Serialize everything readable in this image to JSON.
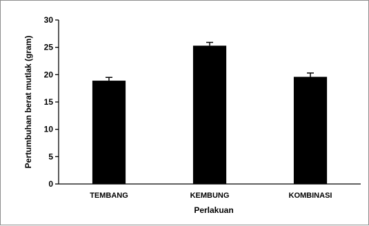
{
  "chart_data": {
    "type": "bar",
    "title": "",
    "xlabel": "Perlakuan",
    "ylabel": "Pertumbuhan berat mutlak (gram)",
    "categories": [
      "TEMBANG",
      "KEMBUNG",
      "KOMBINASI"
    ],
    "values": [
      18.9,
      25.3,
      19.6
    ],
    "errors": [
      0.6,
      0.6,
      0.7
    ],
    "ylim": [
      0,
      30
    ],
    "yticks": [
      "0",
      "5",
      "10",
      "15",
      "20",
      "25",
      "30"
    ],
    "grid": false,
    "legend": "none",
    "bar_color": "#000000"
  }
}
